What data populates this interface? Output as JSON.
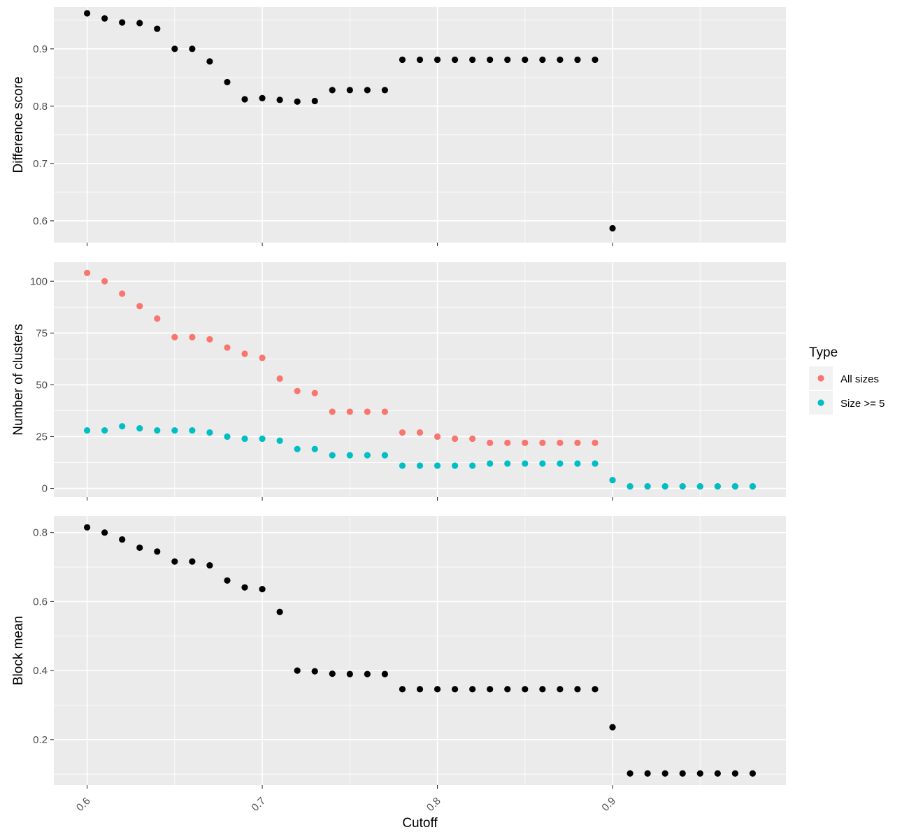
{
  "chart_data": [
    {
      "type": "scatter",
      "ylabel": "Difference score",
      "xlabel": "",
      "xlim": [
        0.581,
        0.999
      ],
      "ylim": [
        0.562,
        0.973
      ],
      "yticks": [
        0.6,
        0.7,
        0.8,
        0.9
      ],
      "ytick_labels": [
        "0.6",
        "0.7",
        "0.8",
        "0.9"
      ],
      "series": [
        {
          "color": "#000000",
          "x": [
            0.6,
            0.61,
            0.62,
            0.63,
            0.64,
            0.65,
            0.66,
            0.67,
            0.68,
            0.69,
            0.7,
            0.71,
            0.72,
            0.73,
            0.74,
            0.75,
            0.76,
            0.77,
            0.78,
            0.79,
            0.8,
            0.81,
            0.82,
            0.83,
            0.84,
            0.85,
            0.86,
            0.87,
            0.88,
            0.89,
            0.9
          ],
          "y": [
            0.962,
            0.953,
            0.946,
            0.945,
            0.935,
            0.9,
            0.9,
            0.878,
            0.842,
            0.812,
            0.814,
            0.811,
            0.808,
            0.809,
            0.828,
            0.828,
            0.828,
            0.828,
            0.881,
            0.881,
            0.881,
            0.881,
            0.881,
            0.881,
            0.881,
            0.881,
            0.881,
            0.881,
            0.881,
            0.881,
            0.587
          ]
        }
      ]
    },
    {
      "type": "scatter",
      "ylabel": "Number of clusters",
      "xlabel": "",
      "xlim": [
        0.581,
        0.999
      ],
      "ylim": [
        -4.2,
        109.2
      ],
      "yticks": [
        0,
        25,
        50,
        75,
        100
      ],
      "ytick_labels": [
        "0",
        "25",
        "50",
        "75",
        "100"
      ],
      "series": [
        {
          "name": "All sizes",
          "color": "#F8766D",
          "x": [
            0.6,
            0.61,
            0.62,
            0.63,
            0.64,
            0.65,
            0.66,
            0.67,
            0.68,
            0.69,
            0.7,
            0.71,
            0.72,
            0.73,
            0.74,
            0.75,
            0.76,
            0.77,
            0.78,
            0.79,
            0.8,
            0.81,
            0.82,
            0.83,
            0.84,
            0.85,
            0.86,
            0.87,
            0.88,
            0.89,
            0.9,
            0.91,
            0.92,
            0.93,
            0.94,
            0.95,
            0.96,
            0.97,
            0.98
          ],
          "y": [
            104,
            100,
            94,
            88,
            82,
            73,
            73,
            72,
            68,
            65,
            63,
            53,
            47,
            46,
            37,
            37,
            37,
            37,
            27,
            27,
            25,
            24,
            24,
            22,
            22,
            22,
            22,
            22,
            22,
            22,
            4,
            1,
            1,
            1,
            1,
            1,
            1,
            1,
            1
          ]
        },
        {
          "name": "Size >= 5",
          "color": "#00BFC4",
          "x": [
            0.6,
            0.61,
            0.62,
            0.63,
            0.64,
            0.65,
            0.66,
            0.67,
            0.68,
            0.69,
            0.7,
            0.71,
            0.72,
            0.73,
            0.74,
            0.75,
            0.76,
            0.77,
            0.78,
            0.79,
            0.8,
            0.81,
            0.82,
            0.83,
            0.84,
            0.85,
            0.86,
            0.87,
            0.88,
            0.89,
            0.9,
            0.91,
            0.92,
            0.93,
            0.94,
            0.95,
            0.96,
            0.97,
            0.98
          ],
          "y": [
            28,
            28,
            30,
            29,
            28,
            28,
            28,
            27,
            25,
            24,
            24,
            23,
            19,
            19,
            16,
            16,
            16,
            16,
            11,
            11,
            11,
            11,
            11,
            12,
            12,
            12,
            12,
            12,
            12,
            12,
            4,
            1,
            1,
            1,
            1,
            1,
            1,
            1,
            1
          ]
        }
      ]
    },
    {
      "type": "scatter",
      "ylabel": "Block mean",
      "xlabel": "Cutoff",
      "xlim": [
        0.581,
        0.999
      ],
      "ylim": [
        0.068,
        0.848
      ],
      "yticks": [
        0.2,
        0.4,
        0.6,
        0.8
      ],
      "ytick_labels": [
        "0.2",
        "0.4",
        "0.6",
        "0.8"
      ],
      "xticks": [
        0.6,
        0.7,
        0.8,
        0.9
      ],
      "xtick_labels": [
        "0.6",
        "0.7",
        "0.8",
        "0.9"
      ],
      "series": [
        {
          "color": "#000000",
          "x": [
            0.6,
            0.61,
            0.62,
            0.63,
            0.64,
            0.65,
            0.66,
            0.67,
            0.68,
            0.69,
            0.7,
            0.71,
            0.72,
            0.73,
            0.74,
            0.75,
            0.76,
            0.77,
            0.78,
            0.79,
            0.8,
            0.81,
            0.82,
            0.83,
            0.84,
            0.85,
            0.86,
            0.87,
            0.88,
            0.89,
            0.9,
            0.91,
            0.92,
            0.93,
            0.94,
            0.95,
            0.96,
            0.97,
            0.98
          ],
          "y": [
            0.815,
            0.8,
            0.78,
            0.756,
            0.745,
            0.716,
            0.716,
            0.705,
            0.661,
            0.641,
            0.636,
            0.57,
            0.4,
            0.398,
            0.391,
            0.39,
            0.39,
            0.39,
            0.346,
            0.346,
            0.346,
            0.346,
            0.346,
            0.346,
            0.346,
            0.346,
            0.346,
            0.346,
            0.346,
            0.346,
            0.236,
            0.102,
            0.102,
            0.102,
            0.102,
            0.102,
            0.102,
            0.102,
            0.102
          ]
        }
      ]
    }
  ],
  "legend": {
    "title": "Type",
    "placement": "right",
    "items": [
      {
        "label": "All sizes",
        "color": "#F8766D"
      },
      {
        "label": "Size >= 5",
        "color": "#00BFC4"
      }
    ]
  }
}
